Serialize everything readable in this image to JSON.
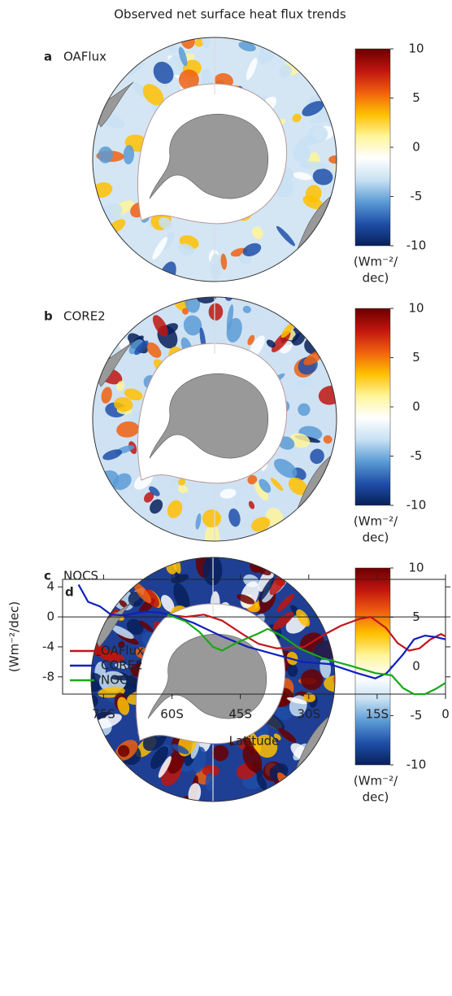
{
  "title": "Observed net surface heat flux trends",
  "colormap": [
    "#08205a",
    "#1f4fa8",
    "#5b9bd5",
    "#c8e1f3",
    "#ffffff",
    "#fff59a",
    "#ffc000",
    "#f06010",
    "#c0150f",
    "#6a0000"
  ],
  "maps": [
    {
      "label": "a",
      "name": "OAFlux",
      "colorbar": {
        "lim": [
          -10,
          10
        ],
        "ticks": [
          10,
          5,
          0,
          -5,
          -10
        ],
        "unit": [
          "(Wm⁻²/",
          "dec)"
        ]
      }
    },
    {
      "label": "b",
      "name": "CORE2",
      "colorbar": {
        "lim": [
          -10,
          10
        ],
        "ticks": [
          10,
          5,
          0,
          -5,
          -10
        ],
        "unit": [
          "(Wm⁻²/",
          "dec)"
        ]
      }
    },
    {
      "label": "c",
      "name": "NOCS",
      "colorbar": {
        "lim": [
          -10,
          10
        ],
        "ticks": [
          10,
          5,
          0,
          -5,
          -10
        ],
        "unit": [
          "(Wm⁻²/",
          "dec)"
        ]
      }
    }
  ],
  "chart_data": {
    "type": "line",
    "label": "d",
    "xlabel": "Latitude",
    "ylabel": "(Wm⁻²/dec)",
    "xlim": [
      -84,
      0
    ],
    "xticks": [
      {
        "value": -75,
        "label": "75S"
      },
      {
        "value": -60,
        "label": "60S"
      },
      {
        "value": -45,
        "label": "45S"
      },
      {
        "value": -30,
        "label": "30S"
      },
      {
        "value": -15,
        "label": "15S"
      },
      0
    ],
    "ylim": [
      -10.3,
      5
    ],
    "yticks": [
      4,
      0,
      -4,
      -8
    ],
    "zero_line": true,
    "legend": "lower left",
    "series": [
      {
        "name": "OAFlux",
        "color": "#c0161c",
        "x": [
          -61,
          -57,
          -53,
          -49,
          -44,
          -41,
          -37,
          -31,
          -27,
          -23,
          -19,
          -16.4,
          -13,
          -10.5,
          -8,
          -5.7,
          -3.3,
          -1,
          0
        ],
        "values": [
          0.3,
          0,
          0.3,
          -0.5,
          -2.5,
          -3.6,
          -4.2,
          -4,
          -2.5,
          -1.2,
          -0.3,
          0,
          -1.5,
          -3.5,
          -4.5,
          -4.2,
          -3,
          -2.3,
          -2.6
        ]
      },
      {
        "name": "CORE2",
        "color": "#1020c0",
        "x": [
          -80.5,
          -78.4,
          -75.8,
          -73.4,
          -70.3,
          -66.3,
          -63.2,
          -60.2,
          -55.3,
          -49.4,
          -43.4,
          -37.4,
          -31.4,
          -25.4,
          -19.4,
          -15.4,
          -12.9,
          -9.3,
          -6.9,
          -4.5,
          -2.1,
          0
        ],
        "values": [
          4.3,
          2,
          1.4,
          0.3,
          0.2,
          0.7,
          0.6,
          0.3,
          -0.8,
          -2.5,
          -4,
          -5,
          -6,
          -6.3,
          -7.5,
          -8.2,
          -7.5,
          -5,
          -3,
          -2.5,
          -2.7,
          -3
        ]
      },
      {
        "name": "NOCS",
        "color": "#18a818",
        "x": [
          -61,
          -57,
          -54,
          -51,
          -49,
          -46,
          -41,
          -39,
          -36,
          -32,
          -27,
          -21,
          -15.4,
          -11.8,
          -9.3,
          -6.9,
          -4.5,
          -2.1,
          0
        ],
        "values": [
          0.3,
          -0.6,
          -2,
          -4,
          -4.5,
          -3.5,
          -2.2,
          -1.6,
          -2.5,
          -4.2,
          -5.5,
          -6.5,
          -7.5,
          -7.8,
          -9.5,
          -10.3,
          -10.3,
          -9.6,
          -8.8
        ]
      }
    ]
  }
}
